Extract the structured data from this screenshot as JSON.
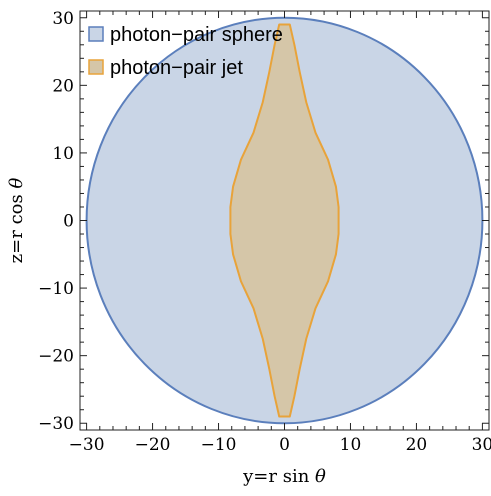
{
  "chart_data": {
    "type": "area",
    "xlabel": {
      "prefix": "y=r sin ",
      "symbol": "θ"
    },
    "ylabel": {
      "prefix": "z=r cos ",
      "symbol": "θ"
    },
    "xlim": [
      -31,
      31
    ],
    "ylim": [
      -31,
      31
    ],
    "xticks": [
      -30,
      -20,
      -10,
      0,
      10,
      20,
      30
    ],
    "yticks": [
      -30,
      -20,
      -10,
      0,
      10,
      20,
      30
    ],
    "xtick_labels": [
      "−30",
      "−20",
      "−10",
      "0",
      "10",
      "20",
      "30"
    ],
    "ytick_labels": [
      "−30",
      "−20",
      "−10",
      "0",
      "10",
      "20",
      "30"
    ],
    "legend_position": "top-left",
    "series": [
      {
        "name": "photon−pair sphere",
        "shape": "circle",
        "center": [
          0,
          0
        ],
        "radius": 30,
        "fill_color": "#c9d5e6",
        "edge_color": "#5b7fbc"
      },
      {
        "name": "photon−pair jet",
        "shape": "polygon",
        "fill_color": "#d5c6a8",
        "edge_color": "#e8a33a",
        "points": [
          [
            -0.8,
            29
          ],
          [
            0.8,
            29
          ],
          [
            1.5,
            26
          ],
          [
            2.3,
            22
          ],
          [
            3.3,
            17.5
          ],
          [
            4.7,
            13
          ],
          [
            6.6,
            9
          ],
          [
            7.8,
            5
          ],
          [
            8.2,
            2
          ],
          [
            8.2,
            -2
          ],
          [
            7.8,
            -5
          ],
          [
            6.6,
            -9
          ],
          [
            4.7,
            -13
          ],
          [
            3.3,
            -17.5
          ],
          [
            2.3,
            -22
          ],
          [
            1.5,
            -26
          ],
          [
            0.8,
            -29
          ],
          [
            -0.8,
            -29
          ],
          [
            -1.5,
            -26
          ],
          [
            -2.3,
            -22
          ],
          [
            -3.3,
            -17.5
          ],
          [
            -4.7,
            -13
          ],
          [
            -6.6,
            -9
          ],
          [
            -7.8,
            -5
          ],
          [
            -8.2,
            -2
          ],
          [
            -8.2,
            2
          ],
          [
            -7.8,
            5
          ],
          [
            -6.6,
            9
          ],
          [
            -4.7,
            13
          ],
          [
            -3.3,
            17.5
          ],
          [
            -2.3,
            22
          ],
          [
            -1.5,
            26
          ]
        ]
      }
    ]
  }
}
